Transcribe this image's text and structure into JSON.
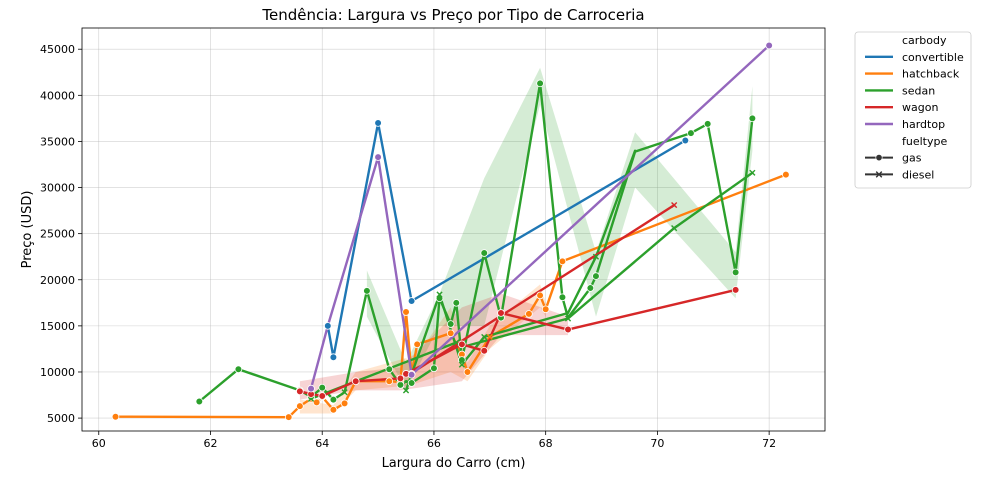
{
  "chart_data": {
    "type": "line",
    "title": "Tendência: Largura vs Preço por Tipo de Carroceria",
    "xlabel": "Largura do Carro (cm)",
    "ylabel": "Preço (USD)",
    "xlim": [
      59.7,
      73.0
    ],
    "ylim": [
      3600,
      47300
    ],
    "x_ticks": [
      60,
      62,
      64,
      66,
      68,
      70,
      72
    ],
    "y_ticks": [
      5000,
      10000,
      15000,
      20000,
      25000,
      30000,
      35000,
      40000,
      45000
    ],
    "grid": true,
    "legend_placement": "outside-top-right",
    "legend": {
      "hue_title": "carbody",
      "style_title": "fueltype",
      "styles": [
        {
          "name": "gas",
          "marker": "o"
        },
        {
          "name": "diesel",
          "marker": "x"
        }
      ]
    },
    "series": [
      {
        "name": "convertible",
        "color": "#1f77b4",
        "line": [
          [
            64.1,
            15000
          ],
          [
            64.2,
            11600
          ],
          [
            65.0,
            37000
          ],
          [
            65.6,
            17700
          ],
          [
            70.5,
            35100
          ]
        ],
        "points_gas": [
          [
            64.1,
            15000
          ],
          [
            64.2,
            11600
          ],
          [
            65.0,
            37000
          ],
          [
            65.6,
            17700
          ],
          [
            70.5,
            35100
          ]
        ],
        "points_diesel": []
      },
      {
        "name": "hatchback",
        "color": "#ff7f0e",
        "line": [
          [
            60.3,
            5150
          ],
          [
            63.4,
            5100
          ],
          [
            63.6,
            6300
          ],
          [
            63.8,
            7100
          ],
          [
            63.9,
            6700
          ],
          [
            64.0,
            7300
          ],
          [
            64.2,
            5900
          ],
          [
            64.4,
            6600
          ],
          [
            64.6,
            9000
          ],
          [
            65.2,
            9000
          ],
          [
            65.4,
            8900
          ],
          [
            65.5,
            16500
          ],
          [
            65.6,
            9800
          ],
          [
            65.7,
            13000
          ],
          [
            66.3,
            14200
          ],
          [
            66.5,
            11900
          ],
          [
            66.6,
            10000
          ],
          [
            67.0,
            13800
          ],
          [
            67.7,
            16300
          ],
          [
            67.9,
            18300
          ],
          [
            68.0,
            16800
          ],
          [
            68.3,
            22000
          ],
          [
            72.3,
            31400
          ]
        ],
        "band": [
          [
            63.6,
            5500,
            7000
          ],
          [
            64.2,
            5500,
            6400
          ],
          [
            64.6,
            8000,
            10000
          ],
          [
            65.5,
            8500,
            11500
          ],
          [
            65.6,
            8600,
            11000
          ],
          [
            66.3,
            10000,
            17000
          ],
          [
            66.6,
            9000,
            11000
          ],
          [
            67.0,
            12500,
            15000
          ],
          [
            67.9,
            17000,
            19500
          ],
          [
            68.0,
            16000,
            17500
          ]
        ],
        "points_gas": [
          [
            60.3,
            5150
          ],
          [
            63.4,
            5100
          ],
          [
            63.6,
            6300
          ],
          [
            63.8,
            7100
          ],
          [
            63.9,
            6700
          ],
          [
            64.0,
            7300
          ],
          [
            64.2,
            5900
          ],
          [
            64.4,
            6600
          ],
          [
            64.6,
            9000
          ],
          [
            65.2,
            9000
          ],
          [
            65.4,
            8900
          ],
          [
            65.5,
            16500
          ],
          [
            65.6,
            9800
          ],
          [
            65.7,
            13000
          ],
          [
            66.3,
            14200
          ],
          [
            66.5,
            11900
          ],
          [
            66.6,
            10000
          ],
          [
            67.7,
            16300
          ],
          [
            67.9,
            18300
          ],
          [
            68.0,
            16800
          ],
          [
            68.3,
            22000
          ],
          [
            72.3,
            31400
          ]
        ],
        "points_diesel": [
          [
            67.0,
            13800
          ]
        ]
      },
      {
        "name": "sedan",
        "color": "#2ca02c",
        "line": [
          [
            61.8,
            6800
          ],
          [
            62.5,
            10300
          ],
          [
            63.6,
            8000
          ],
          [
            63.8,
            7300
          ],
          [
            64.0,
            8300
          ],
          [
            64.2,
            7000
          ],
          [
            64.4,
            7800
          ],
          [
            64.8,
            18800
          ],
          [
            65.2,
            10300
          ],
          [
            65.4,
            8600
          ],
          [
            65.5,
            9000
          ],
          [
            65.6,
            8800
          ],
          [
            66.0,
            10400
          ],
          [
            66.1,
            18000
          ],
          [
            66.3,
            15200
          ],
          [
            66.4,
            17500
          ],
          [
            66.5,
            11300
          ],
          [
            66.9,
            22900
          ],
          [
            67.2,
            15900
          ],
          [
            67.9,
            41300
          ],
          [
            68.3,
            18100
          ],
          [
            68.4,
            15900
          ],
          [
            68.8,
            19100
          ],
          [
            68.9,
            20400
          ],
          [
            69.6,
            33900
          ],
          [
            70.6,
            35900
          ],
          [
            70.9,
            36900
          ],
          [
            71.4,
            20800
          ],
          [
            71.7,
            37500
          ]
        ],
        "extra_lines": [
          [
            [
              63.8,
              7100
            ],
            [
              66.4,
              13200
            ],
            [
              66.5,
              12700
            ],
            [
              68.4,
              15800
            ],
            [
              70.3,
              25600
            ],
            [
              71.7,
              31600
            ]
          ],
          [
            [
              65.5,
              8000
            ],
            [
              66.1,
              18400
            ],
            [
              66.5,
              10800
            ],
            [
              66.9,
              13800
            ],
            [
              68.4,
              16400
            ],
            [
              68.9,
              22500
            ],
            [
              69.6,
              34000
            ]
          ]
        ],
        "band": [
          [
            64.8,
            16000,
            21000
          ],
          [
            65.5,
            8000,
            11000
          ],
          [
            66.1,
            15000,
            18500
          ],
          [
            66.9,
            15000,
            31000
          ],
          [
            67.9,
            39000,
            43000
          ],
          [
            68.9,
            16000,
            23000
          ],
          [
            69.6,
            30000,
            36000
          ],
          [
            71.4,
            18000,
            23000
          ],
          [
            71.7,
            34000,
            41000
          ]
        ],
        "points_gas": [
          [
            61.8,
            6800
          ],
          [
            62.5,
            10300
          ],
          [
            63.6,
            8000
          ],
          [
            63.8,
            7300
          ],
          [
            64.0,
            8300
          ],
          [
            64.2,
            7000
          ],
          [
            64.8,
            18800
          ],
          [
            65.2,
            10300
          ],
          [
            65.4,
            8600
          ],
          [
            65.6,
            8800
          ],
          [
            66.0,
            10400
          ],
          [
            66.1,
            18000
          ],
          [
            66.3,
            15200
          ],
          [
            66.4,
            17500
          ],
          [
            66.5,
            11300
          ],
          [
            66.9,
            22900
          ],
          [
            67.2,
            15900
          ],
          [
            67.9,
            41300
          ],
          [
            68.3,
            18100
          ],
          [
            68.8,
            19100
          ],
          [
            68.9,
            20400
          ],
          [
            70.6,
            35900
          ],
          [
            70.9,
            36900
          ],
          [
            71.4,
            20800
          ],
          [
            71.7,
            37500
          ]
        ],
        "points_diesel": [
          [
            63.8,
            7100
          ],
          [
            64.4,
            7800
          ],
          [
            65.5,
            8000
          ],
          [
            66.1,
            18400
          ],
          [
            66.4,
            13200
          ],
          [
            66.5,
            10800
          ],
          [
            66.9,
            13800
          ],
          [
            68.4,
            15800
          ],
          [
            68.9,
            22500
          ],
          [
            70.3,
            25600
          ],
          [
            71.7,
            31600
          ]
        ]
      },
      {
        "name": "wagon",
        "color": "#d62728",
        "line": [
          [
            63.6,
            7900
          ],
          [
            63.8,
            7600
          ],
          [
            64.0,
            7400
          ],
          [
            64.6,
            9000
          ],
          [
            65.4,
            9300
          ],
          [
            65.5,
            9800
          ],
          [
            66.5,
            13000
          ],
          [
            66.9,
            12300
          ],
          [
            67.2,
            16400
          ],
          [
            68.4,
            14600
          ],
          [
            71.4,
            18900
          ]
        ],
        "extra_lines": [
          [
            [
              65.5,
              9500
            ],
            [
              70.3,
              28100
            ]
          ]
        ],
        "band": [
          [
            63.6,
            7000,
            9000
          ],
          [
            64.6,
            8000,
            10000
          ],
          [
            65.4,
            8000,
            10500
          ],
          [
            66.5,
            9000,
            17000
          ],
          [
            67.2,
            14000,
            18500
          ],
          [
            68.4,
            14000,
            16000
          ]
        ],
        "points_gas": [
          [
            63.6,
            7900
          ],
          [
            63.8,
            7600
          ],
          [
            64.0,
            7400
          ],
          [
            64.6,
            9000
          ],
          [
            65.4,
            9300
          ],
          [
            65.5,
            9800
          ],
          [
            66.5,
            13000
          ],
          [
            66.9,
            12300
          ],
          [
            67.2,
            16400
          ],
          [
            68.4,
            14600
          ],
          [
            71.4,
            18900
          ]
        ],
        "points_diesel": [
          [
            70.3,
            28100
          ]
        ]
      },
      {
        "name": "hardtop",
        "color": "#9467bd",
        "line": [
          [
            63.8,
            8200
          ],
          [
            64.1,
            15000
          ],
          [
            65.0,
            33300
          ],
          [
            65.6,
            9700
          ],
          [
            72.0,
            45400
          ]
        ],
        "points_gas": [
          [
            63.8,
            8200
          ],
          [
            65.0,
            33300
          ],
          [
            65.6,
            9700
          ],
          [
            72.0,
            45400
          ]
        ],
        "points_diesel": []
      }
    ]
  }
}
